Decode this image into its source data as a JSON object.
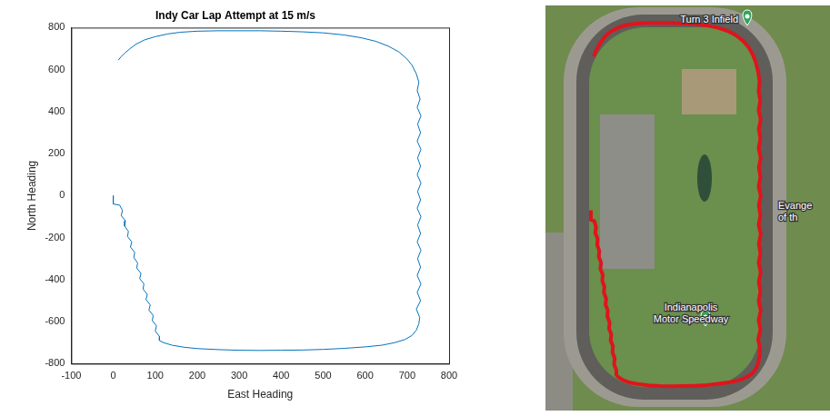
{
  "chart_data": {
    "type": "line",
    "title": "Indy Car Lap Attempt at 15 m/s",
    "x_label": "East Heading",
    "y_label": "North Heading",
    "x": [
      0,
      0,
      15,
      22,
      19,
      29,
      27,
      36,
      34,
      44,
      41,
      51,
      49,
      58,
      56,
      66,
      63,
      73,
      71,
      81,
      78,
      88,
      85,
      95,
      93,
      103,
      100,
      110,
      110,
      120,
      140,
      170,
      200,
      250,
      300,
      350,
      400,
      450,
      500,
      550,
      600,
      640,
      670,
      695,
      712,
      722,
      728,
      730,
      722,
      732,
      724,
      733,
      724,
      732,
      725,
      733,
      724,
      732,
      725,
      733,
      724,
      732,
      725,
      733,
      724,
      732,
      725,
      733,
      724,
      732,
      725,
      733,
      724,
      731,
      724,
      728,
      722,
      712,
      700,
      680,
      655,
      625,
      590,
      550,
      500,
      450,
      400,
      350,
      300,
      250,
      200,
      160,
      130,
      100,
      75,
      55,
      40,
      28,
      18,
      12
    ],
    "values": [
      0,
      -40,
      -45,
      -70,
      -95,
      -120,
      -145,
      -170,
      -195,
      -220,
      -245,
      -270,
      -295,
      -320,
      -345,
      -370,
      -395,
      -420,
      -445,
      -470,
      -495,
      -520,
      -545,
      -570,
      -595,
      -620,
      -645,
      -670,
      -690,
      -700,
      -712,
      -722,
      -728,
      -733,
      -736,
      -737,
      -736,
      -735,
      -732,
      -727,
      -720,
      -712,
      -700,
      -685,
      -665,
      -640,
      -610,
      -580,
      -540,
      -500,
      -460,
      -420,
      -380,
      -340,
      -300,
      -260,
      -220,
      -180,
      -140,
      -100,
      -60,
      -20,
      20,
      60,
      100,
      140,
      180,
      220,
      260,
      300,
      340,
      380,
      420,
      460,
      500,
      540,
      580,
      620,
      650,
      685,
      712,
      735,
      752,
      765,
      775,
      780,
      783,
      785,
      785,
      785,
      783,
      778,
      770,
      757,
      742,
      722,
      700,
      680,
      660,
      645
    ],
    "color": "#0072bd",
    "xlim": [
      -100,
      800
    ],
    "xticks": [
      -100,
      0,
      100,
      200,
      300,
      400,
      500,
      600,
      700,
      800
    ],
    "ylim": [
      -800,
      800
    ],
    "yticks": [
      -800,
      -600,
      -400,
      -200,
      0,
      200,
      400,
      600,
      800
    ],
    "grid": false
  },
  "map": {
    "pins": [
      {
        "label": [
          "Turn 3 Infield"
        ]
      },
      {
        "label": [
          "Indianapolis",
          "Motor Speedway"
        ]
      }
    ],
    "texts": [
      "Evange",
      "of th"
    ]
  }
}
